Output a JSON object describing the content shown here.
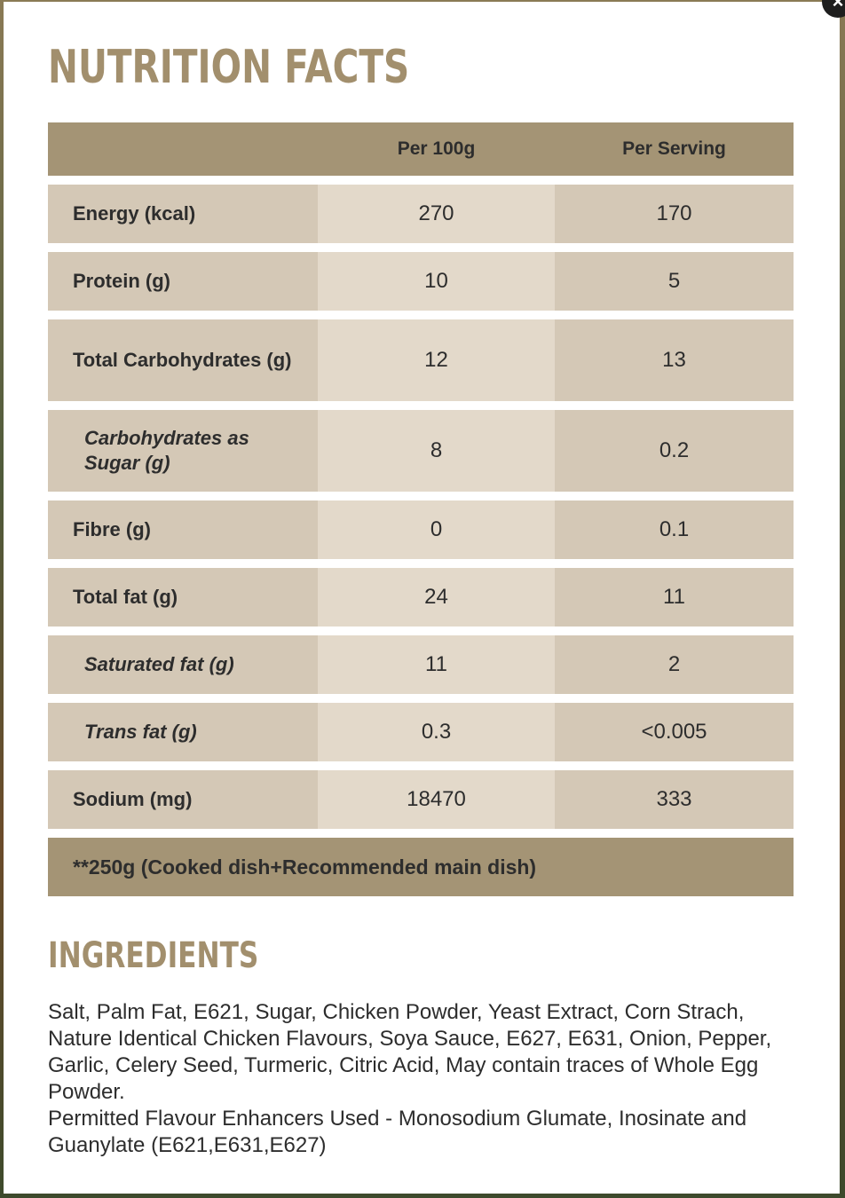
{
  "close_button": {
    "label": "×"
  },
  "nutrition": {
    "title": "NUTRITION FACTS",
    "headers": [
      "",
      "Per 100g",
      "Per Serving"
    ],
    "rows": [
      {
        "name": "Energy (kcal)",
        "per100": "270",
        "serving": "170",
        "sub": false
      },
      {
        "name": "Protein (g)",
        "per100": "10",
        "serving": "5",
        "sub": false
      },
      {
        "name": "Total Carbohydrates (g)",
        "per100": "12",
        "serving": "13",
        "sub": false
      },
      {
        "name": "Carbohydrates as Sugar (g)",
        "per100": "8",
        "serving": "0.2",
        "sub": true
      },
      {
        "name": "Fibre (g)",
        "per100": "0",
        "serving": "0.1",
        "sub": false
      },
      {
        "name": "Total fat (g)",
        "per100": "24",
        "serving": "11",
        "sub": false
      },
      {
        "name": "Saturated fat (g)",
        "per100": "11",
        "serving": "2",
        "sub": true
      },
      {
        "name": "Trans fat (g)",
        "per100": "0.3",
        "serving": "<0.005",
        "sub": true
      },
      {
        "name": "Sodium (mg)",
        "per100": "18470",
        "serving": "333",
        "sub": false
      }
    ],
    "footnote": "**250g (Cooked dish+Recommended main dish)"
  },
  "ingredients": {
    "title": "INGREDIENTS",
    "text": "Salt, Palm Fat, E621, Sugar, Chicken Powder, Yeast Extract, Corn Strach, Nature Identical Chicken Flavours, Soya Sauce, E627, E631, Onion, Pepper, Garlic, Celery Seed, Turmeric, Citric Acid, May contain traces of Whole Egg Powder.",
    "enhancers": "Permitted Flavour Enhancers Used - Monosodium Glumate, Inosinate and Guanylate (E621,E631,E627)"
  },
  "colors": {
    "heading": "#a28f6d",
    "header_bg": "#a49475",
    "cell_dark": "#d4c8b6",
    "cell_light": "#e3d9ca",
    "text": "#2d2d2d"
  }
}
